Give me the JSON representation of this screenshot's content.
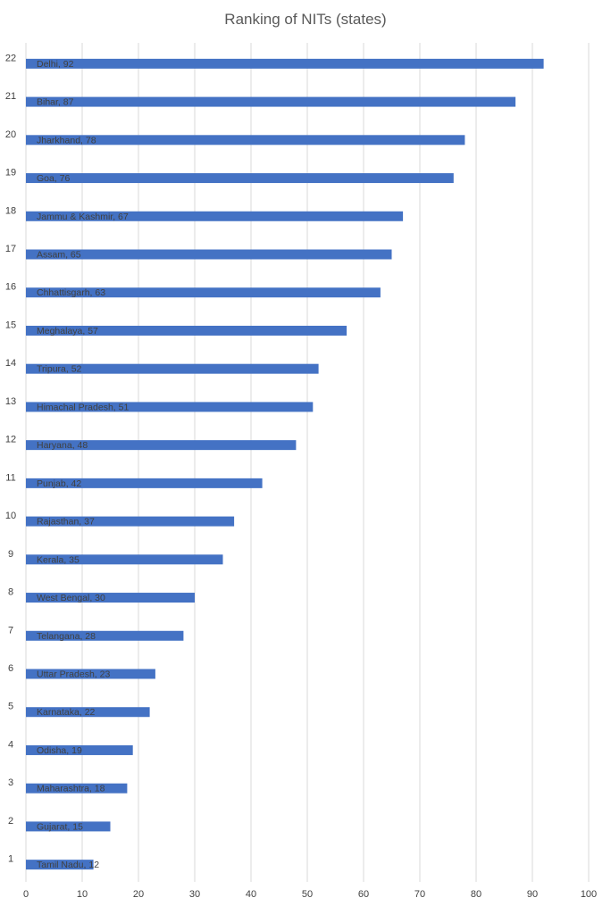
{
  "chart_data": {
    "type": "bar",
    "orientation": "horizontal",
    "title": "Ranking of NITs (states)",
    "xlabel": "",
    "ylabel": "",
    "xlim": [
      0,
      100
    ],
    "x_ticks": [
      "0",
      "10",
      "20",
      "30",
      "40",
      "50",
      "60",
      "70",
      "80",
      "90",
      "100"
    ],
    "grid": true,
    "legend": "none",
    "bar_color": "#4472c4",
    "categories": [
      "1",
      "2",
      "3",
      "4",
      "5",
      "6",
      "7",
      "8",
      "9",
      "10",
      "11",
      "12",
      "13",
      "14",
      "15",
      "16",
      "17",
      "18",
      "19",
      "20",
      "21",
      "22"
    ],
    "values": [
      12,
      15,
      18,
      19,
      22,
      23,
      28,
      30,
      35,
      37,
      42,
      48,
      51,
      52,
      57,
      63,
      65,
      67,
      76,
      78,
      87,
      92
    ],
    "data_labels": [
      "Tamil Nadu, 12",
      "Gujarat, 15",
      "Maharashtra, 18",
      "Odisha, 19",
      "Karnataka, 22",
      "Uttar Pradesh, 23",
      "Telangana, 28",
      "West Bengal, 30",
      "Kerala, 35",
      "Rajasthan, 37",
      "Punjab, 42",
      "Haryana, 48",
      "Himachal Pradesh, 51",
      "Tripura, 52",
      "Meghalaya, 57",
      "Chhattisgarh, 63",
      "Assam, 65",
      "Jammu & Kashmir, 67",
      "Goa, 76",
      "Jharkhand, 78",
      "Bihar, 87",
      "Delhi, 92"
    ]
  }
}
